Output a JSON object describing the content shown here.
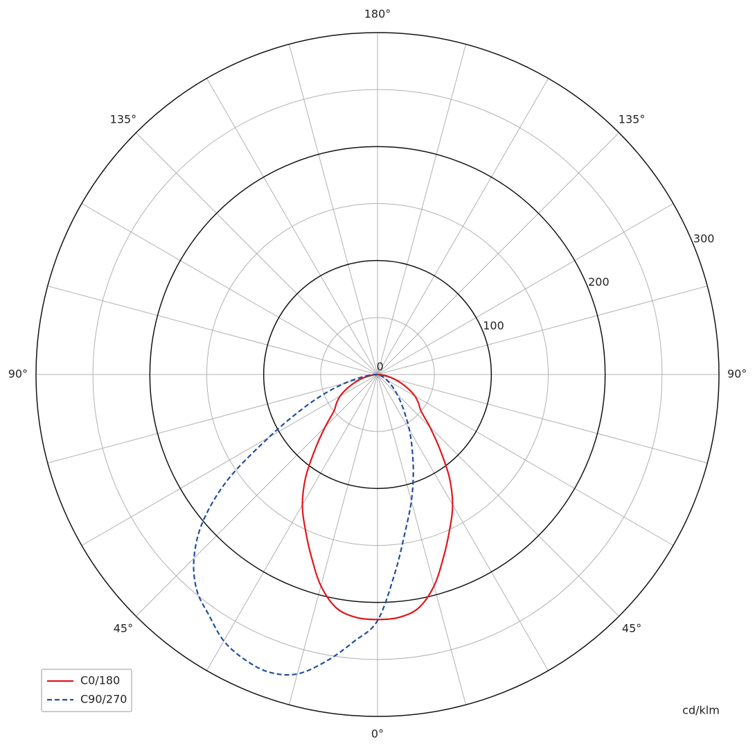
{
  "chart_data": {
    "type": "polar",
    "unit_label": "cd/klm",
    "x": [
      -90,
      -85,
      -80,
      -75,
      -70,
      -65,
      -60,
      -55,
      -50,
      -45,
      -40,
      -35,
      -30,
      -25,
      -20,
      -15,
      -10,
      -5,
      0,
      5,
      10,
      15,
      20,
      25,
      30,
      35,
      40,
      45,
      50,
      55,
      60,
      65,
      70,
      75,
      80,
      85,
      90
    ],
    "series": [
      {
        "name": "C0/180",
        "color": "#e0161c",
        "dash": "solid",
        "values": [
          0,
          4,
          9,
          15,
          22,
          30,
          38,
          44,
          50,
          65,
          85,
          110,
          132,
          150,
          170,
          192,
          208,
          214,
          215,
          214,
          208,
          192,
          170,
          150,
          132,
          110,
          85,
          65,
          50,
          44,
          38,
          30,
          22,
          15,
          9,
          4,
          0
        ]
      },
      {
        "name": "C90/270",
        "color": "#1f4e9c",
        "dash": "dashed",
        "values": [
          0,
          6,
          15,
          30,
          50,
          75,
          110,
          160,
          200,
          228,
          247,
          258,
          270,
          276,
          278,
          272,
          255,
          235,
          216,
          175,
          140,
          115,
          92,
          72,
          56,
          42,
          32,
          24,
          18,
          13,
          9,
          6,
          4,
          2,
          1,
          0,
          0
        ]
      }
    ],
    "rlim": [
      0,
      300
    ],
    "rticks": [
      0,
      100,
      200,
      300
    ],
    "rminor": [
      50,
      150,
      250
    ],
    "thetaticks": [
      {
        "value": 0,
        "label": "0°"
      },
      {
        "value": -45,
        "label": "45°"
      },
      {
        "value": 45,
        "label": "45°"
      },
      {
        "value": -90,
        "label": "90°"
      },
      {
        "value": 90,
        "label": "90°"
      },
      {
        "value": -135,
        "label": "135°"
      },
      {
        "value": 135,
        "label": "135°"
      },
      {
        "value": 180,
        "label": "180°"
      }
    ],
    "thetagrid": [
      0,
      15,
      30,
      45,
      60,
      75,
      90,
      105,
      120,
      135,
      150,
      165,
      180,
      195,
      210,
      225,
      240,
      255,
      270,
      285,
      300,
      315,
      330,
      345
    ],
    "legend": "lower left"
  }
}
